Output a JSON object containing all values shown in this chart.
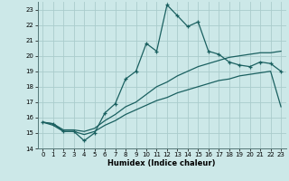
{
  "title": "",
  "xlabel": "Humidex (Indice chaleur)",
  "bg_color": "#cce8e8",
  "grid_color": "#aacccc",
  "line_color": "#1a6060",
  "xlim": [
    -0.5,
    23.5
  ],
  "ylim": [
    14,
    23.5
  ],
  "yticks": [
    14,
    15,
    16,
    17,
    18,
    19,
    20,
    21,
    22,
    23
  ],
  "xticks": [
    0,
    1,
    2,
    3,
    4,
    5,
    6,
    7,
    8,
    9,
    10,
    11,
    12,
    13,
    14,
    15,
    16,
    17,
    18,
    19,
    20,
    21,
    22,
    23
  ],
  "line1_x": [
    0,
    1,
    2,
    3,
    4,
    5,
    6,
    7,
    8,
    9,
    10,
    11,
    12,
    13,
    14,
    15,
    16,
    17,
    18,
    19,
    20,
    21,
    22,
    23
  ],
  "line1_y": [
    15.7,
    15.6,
    15.1,
    15.1,
    14.5,
    15.0,
    16.3,
    16.9,
    18.5,
    19.0,
    20.8,
    20.3,
    23.3,
    22.6,
    21.9,
    22.2,
    20.3,
    20.1,
    19.6,
    19.4,
    19.3,
    19.6,
    19.5,
    19.0
  ],
  "line2_x": [
    0,
    1,
    2,
    3,
    4,
    5,
    6,
    7,
    8,
    9,
    10,
    11,
    12,
    13,
    14,
    15,
    16,
    17,
    18,
    19,
    20,
    21,
    22,
    23
  ],
  "line2_y": [
    15.7,
    15.6,
    15.2,
    15.2,
    15.1,
    15.3,
    15.8,
    16.2,
    16.7,
    17.0,
    17.5,
    18.0,
    18.3,
    18.7,
    19.0,
    19.3,
    19.5,
    19.7,
    19.9,
    20.0,
    20.1,
    20.2,
    20.2,
    20.3
  ],
  "line3_x": [
    0,
    1,
    2,
    3,
    4,
    5,
    6,
    7,
    8,
    9,
    10,
    11,
    12,
    13,
    14,
    15,
    16,
    17,
    18,
    19,
    20,
    21,
    22,
    23
  ],
  "line3_y": [
    15.7,
    15.5,
    15.1,
    15.1,
    14.9,
    15.1,
    15.5,
    15.8,
    16.2,
    16.5,
    16.8,
    17.1,
    17.3,
    17.6,
    17.8,
    18.0,
    18.2,
    18.4,
    18.5,
    18.7,
    18.8,
    18.9,
    19.0,
    16.7
  ]
}
